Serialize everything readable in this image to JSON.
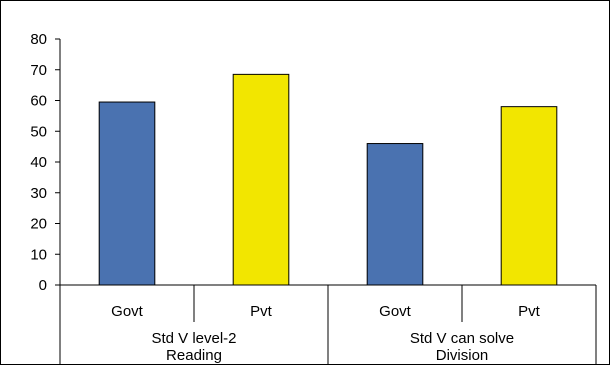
{
  "chart_data": {
    "type": "bar",
    "categories": [
      {
        "sub": "Govt",
        "group": "Std V level-2 Reading"
      },
      {
        "sub": "Pvt",
        "group": "Std V level-2 Reading"
      },
      {
        "sub": "Govt",
        "group": "Std V can solve Division"
      },
      {
        "sub": "Pvt",
        "group": "Std V can solve Division"
      }
    ],
    "groups": [
      {
        "label_lines": [
          "Std V level-2",
          "Reading"
        ]
      },
      {
        "label_lines": [
          "Std V can solve",
          "Division"
        ]
      }
    ],
    "values": [
      59.5,
      68.5,
      46,
      58
    ],
    "bar_colors": [
      "#4a72b0",
      "#f2e600",
      "#4a72b0",
      "#f2e600"
    ],
    "ylim": [
      0,
      80
    ],
    "yticks": [
      0,
      10,
      20,
      30,
      40,
      50,
      60,
      70,
      80
    ],
    "grid": false,
    "legend": "none",
    "title": "",
    "xlabel": "",
    "ylabel": ""
  }
}
